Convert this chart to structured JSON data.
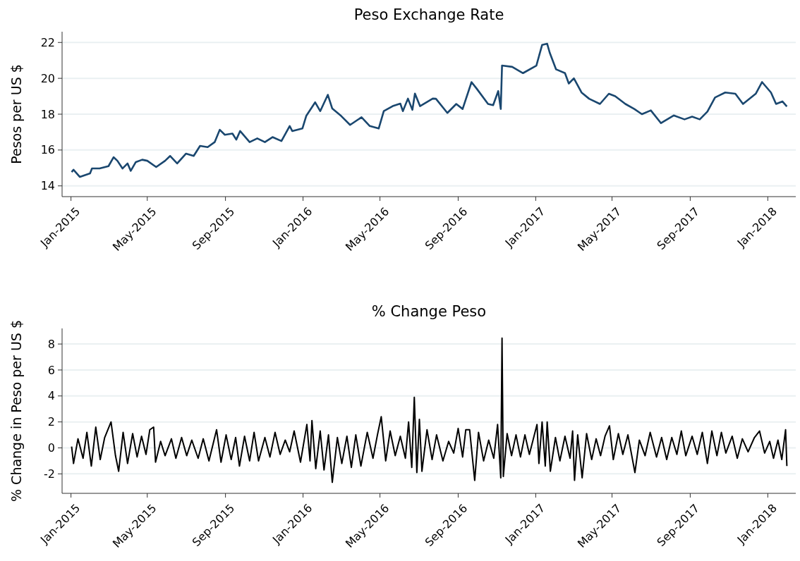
{
  "chart_data": [
    {
      "type": "line",
      "title": "Peso Exchange Rate",
      "ylabel": "Pesos per US $",
      "color": "#1a476f",
      "grid": "y",
      "xlim": [
        "2014-12-18",
        "2018-02-14"
      ],
      "ylim": [
        13.4,
        22.6
      ],
      "yticks": [
        14,
        16,
        18,
        20,
        22
      ],
      "xticks": [
        {
          "value": "2015-01-01",
          "label": "Jan-2015"
        },
        {
          "value": "2015-05-01",
          "label": "May-2015"
        },
        {
          "value": "2015-09-01",
          "label": "Sep-2015"
        },
        {
          "value": "2016-01-01",
          "label": "Jan-2016"
        },
        {
          "value": "2016-05-01",
          "label": "May-2016"
        },
        {
          "value": "2016-09-01",
          "label": "Sep-2016"
        },
        {
          "value": "2017-01-01",
          "label": "Jan-2017"
        },
        {
          "value": "2017-05-01",
          "label": "May-2017"
        },
        {
          "value": "2017-09-01",
          "label": "Sep-2017"
        },
        {
          "value": "2018-01-01",
          "label": "Jan-2018"
        }
      ],
      "x": [
        "2015-01-02",
        "2015-01-05",
        "2015-01-15",
        "2015-01-31",
        "2015-02-03",
        "2015-02-15",
        "2015-03-01",
        "2015-03-09",
        "2015-03-15",
        "2015-03-23",
        "2015-03-31",
        "2015-04-05",
        "2015-04-13",
        "2015-04-23",
        "2015-05-01",
        "2015-05-15",
        "2015-05-29",
        "2015-06-06",
        "2015-06-17",
        "2015-07-01",
        "2015-07-13",
        "2015-07-23",
        "2015-08-04",
        "2015-08-15",
        "2015-08-23",
        "2015-08-31",
        "2015-09-12",
        "2015-09-18",
        "2015-09-24",
        "2015-10-09",
        "2015-10-21",
        "2015-11-02",
        "2015-11-14",
        "2015-11-28",
        "2015-12-11",
        "2015-12-15",
        "2015-12-31",
        "2016-01-06",
        "2016-01-20",
        "2016-01-28",
        "2016-02-09",
        "2016-02-16",
        "2016-03-01",
        "2016-03-15",
        "2016-04-02",
        "2016-04-15",
        "2016-04-29",
        "2016-05-07",
        "2016-05-21",
        "2016-06-02",
        "2016-06-06",
        "2016-06-14",
        "2016-06-21",
        "2016-06-25",
        "2016-07-03",
        "2016-07-23",
        "2016-07-28",
        "2016-08-15",
        "2016-08-29",
        "2016-09-08",
        "2016-09-22",
        "2016-09-30",
        "2016-10-18",
        "2016-10-26",
        "2016-11-03",
        "2016-11-07",
        "2016-11-09",
        "2016-11-25",
        "2016-12-12",
        "2017-01-02",
        "2017-01-11",
        "2017-01-19",
        "2017-01-23",
        "2017-02-02",
        "2017-02-16",
        "2017-02-22",
        "2017-03-02",
        "2017-03-14",
        "2017-03-26",
        "2017-04-12",
        "2017-04-26",
        "2017-05-06",
        "2017-05-22",
        "2017-06-05",
        "2017-06-17",
        "2017-07-01",
        "2017-07-17",
        "2017-08-06",
        "2017-08-23",
        "2017-09-04",
        "2017-09-16",
        "2017-09-28",
        "2017-10-10",
        "2017-10-26",
        "2017-11-11",
        "2017-11-23",
        "2017-12-13",
        "2017-12-23",
        "2018-01-06",
        "2018-01-14",
        "2018-01-24",
        "2018-01-31"
      ],
      "values": [
        14.77,
        14.9,
        14.5,
        14.7,
        14.97,
        14.97,
        15.1,
        15.6,
        15.4,
        14.97,
        15.25,
        14.84,
        15.33,
        15.46,
        15.4,
        15.05,
        15.4,
        15.67,
        15.25,
        15.8,
        15.67,
        16.23,
        16.16,
        16.44,
        17.13,
        16.85,
        16.92,
        16.58,
        17.06,
        16.44,
        16.65,
        16.44,
        16.72,
        16.5,
        17.34,
        17.06,
        17.2,
        17.9,
        18.66,
        18.17,
        19.08,
        18.31,
        17.9,
        17.4,
        17.83,
        17.34,
        17.2,
        18.17,
        18.45,
        18.59,
        18.17,
        18.87,
        18.24,
        19.15,
        18.45,
        18.87,
        18.86,
        18.07,
        18.57,
        18.29,
        19.79,
        19.43,
        18.57,
        18.5,
        19.29,
        18.29,
        20.71,
        20.64,
        20.29,
        20.71,
        21.86,
        21.93,
        21.43,
        20.5,
        20.29,
        19.71,
        20,
        19.21,
        18.86,
        18.57,
        19.14,
        19,
        18.57,
        18.29,
        18,
        18.21,
        17.5,
        17.93,
        17.71,
        17.86,
        17.71,
        18.14,
        18.93,
        19.21,
        19.14,
        18.57,
        19.14,
        19.79,
        19.21,
        18.57,
        18.71,
        18.43
      ]
    },
    {
      "type": "line",
      "title": "% Change Peso",
      "ylabel": "% Change in Peso per US $",
      "color": "#000000",
      "grid": "y",
      "xlim": [
        "2014-12-18",
        "2018-02-14"
      ],
      "ylim": [
        -3.5,
        9.2
      ],
      "yticks": [
        -2,
        0,
        2,
        4,
        6,
        8
      ],
      "xticks": [
        {
          "value": "2015-01-01",
          "label": "Jan-2015"
        },
        {
          "value": "2015-05-01",
          "label": "May-2015"
        },
        {
          "value": "2015-09-01",
          "label": "Sep-2015"
        },
        {
          "value": "2016-01-01",
          "label": "Jan-2016"
        },
        {
          "value": "2016-05-01",
          "label": "May-2016"
        },
        {
          "value": "2016-09-01",
          "label": "Sep-2016"
        },
        {
          "value": "2017-01-01",
          "label": "Jan-2017"
        },
        {
          "value": "2017-05-01",
          "label": "May-2017"
        },
        {
          "value": "2017-09-01",
          "label": "Sep-2017"
        },
        {
          "value": "2018-01-01",
          "label": "Jan-2018"
        }
      ],
      "x": [
        "2015-01-02",
        "2015-01-05",
        "2015-01-12",
        "2015-01-20",
        "2015-01-26",
        "2015-02-02",
        "2015-02-09",
        "2015-02-16",
        "2015-02-23",
        "2015-03-05",
        "2015-03-12",
        "2015-03-17",
        "2015-03-24",
        "2015-03-31",
        "2015-04-08",
        "2015-04-15",
        "2015-04-22",
        "2015-04-29",
        "2015-05-05",
        "2015-05-11",
        "2015-05-14",
        "2015-05-22",
        "2015-05-29",
        "2015-06-08",
        "2015-06-15",
        "2015-06-24",
        "2015-07-02",
        "2015-07-10",
        "2015-07-20",
        "2015-07-28",
        "2015-08-06",
        "2015-08-18",
        "2015-08-25",
        "2015-09-02",
        "2015-09-10",
        "2015-09-17",
        "2015-09-23",
        "2015-10-01",
        "2015-10-09",
        "2015-10-16",
        "2015-10-23",
        "2015-11-02",
        "2015-11-10",
        "2015-11-18",
        "2015-11-26",
        "2015-12-04",
        "2015-12-11",
        "2015-12-18",
        "2015-12-28",
        "2016-01-07",
        "2016-01-12",
        "2016-01-15",
        "2016-01-21",
        "2016-01-28",
        "2016-02-03",
        "2016-02-10",
        "2016-02-16",
        "2016-02-24",
        "2016-03-02",
        "2016-03-10",
        "2016-03-17",
        "2016-03-24",
        "2016-04-01",
        "2016-04-11",
        "2016-04-20",
        "2016-04-27",
        "2016-05-03",
        "2016-05-10",
        "2016-05-17",
        "2016-05-25",
        "2016-06-02",
        "2016-06-10",
        "2016-06-15",
        "2016-06-20",
        "2016-06-24",
        "2016-06-28",
        "2016-07-02",
        "2016-07-06",
        "2016-07-14",
        "2016-07-22",
        "2016-07-29",
        "2016-08-08",
        "2016-08-17",
        "2016-08-25",
        "2016-09-01",
        "2016-09-08",
        "2016-09-13",
        "2016-09-19",
        "2016-09-27",
        "2016-10-03",
        "2016-10-11",
        "2016-10-19",
        "2016-10-27",
        "2016-11-02",
        "2016-11-07",
        "2016-11-09",
        "2016-11-11",
        "2016-11-17",
        "2016-11-24",
        "2016-12-01",
        "2016-12-08",
        "2016-12-15",
        "2016-12-22",
        "2017-01-03",
        "2017-01-06",
        "2017-01-11",
        "2017-01-16",
        "2017-01-19",
        "2017-01-24",
        "2017-02-01",
        "2017-02-08",
        "2017-02-16",
        "2017-02-24",
        "2017-02-28",
        "2017-03-03",
        "2017-03-08",
        "2017-03-15",
        "2017-03-22",
        "2017-03-30",
        "2017-04-06",
        "2017-04-13",
        "2017-04-20",
        "2017-04-27",
        "2017-05-03",
        "2017-05-11",
        "2017-05-18",
        "2017-05-26",
        "2017-06-06",
        "2017-06-13",
        "2017-06-22",
        "2017-06-30",
        "2017-07-10",
        "2017-07-18",
        "2017-07-26",
        "2017-08-03",
        "2017-08-11",
        "2017-08-18",
        "2017-08-25",
        "2017-09-04",
        "2017-09-12",
        "2017-09-20",
        "2017-09-28",
        "2017-10-05",
        "2017-10-13",
        "2017-10-20",
        "2017-10-27",
        "2017-11-06",
        "2017-11-14",
        "2017-11-22",
        "2017-12-01",
        "2017-12-11",
        "2017-12-19",
        "2017-12-27",
        "2018-01-04",
        "2018-01-10",
        "2018-01-17",
        "2018-01-23",
        "2018-01-29",
        "2018-01-31"
      ],
      "values": [
        0.1,
        -1.2,
        0.7,
        -0.8,
        1.2,
        -1.4,
        1.6,
        -0.9,
        0.8,
        2.0,
        -0.6,
        -1.8,
        1.2,
        -1.2,
        1.1,
        -0.7,
        0.9,
        -0.5,
        1.4,
        1.6,
        -1.1,
        0.5,
        -0.6,
        0.7,
        -0.8,
        0.8,
        -0.6,
        0.6,
        -0.8,
        0.7,
        -1.0,
        1.4,
        -1.1,
        1.0,
        -0.9,
        0.8,
        -1.4,
        0.9,
        -1.0,
        1.2,
        -1.0,
        0.8,
        -0.7,
        1.2,
        -0.5,
        0.6,
        -0.3,
        1.3,
        -1.1,
        1.8,
        -1.0,
        2.1,
        -1.6,
        1.3,
        -1.7,
        1.0,
        -2.65,
        0.8,
        -1.2,
        0.9,
        -1.5,
        1.0,
        -1.4,
        1.2,
        -0.8,
        1.0,
        2.4,
        -1.0,
        1.3,
        -0.6,
        0.9,
        -0.8,
        2.0,
        -1.5,
        3.9,
        -1.9,
        2.2,
        -1.8,
        1.4,
        -0.9,
        1.0,
        -1.0,
        0.5,
        -0.4,
        1.5,
        -0.7,
        1.4,
        1.4,
        -2.5,
        1.2,
        -1.0,
        0.6,
        -0.8,
        1.8,
        -2.3,
        8.45,
        -2.2,
        1.1,
        -0.6,
        1.0,
        -0.7,
        1.0,
        -0.5,
        1.8,
        -1.2,
        2.0,
        -1.4,
        2.0,
        -1.8,
        0.8,
        -1.0,
        0.9,
        -0.8,
        1.3,
        -2.5,
        1.0,
        -2.3,
        1.1,
        -0.9,
        0.7,
        -0.6,
        0.9,
        1.7,
        -0.9,
        1.1,
        -0.5,
        1.0,
        -1.9,
        0.6,
        -0.6,
        1.2,
        -0.7,
        0.8,
        -0.9,
        0.8,
        -0.5,
        1.3,
        -0.6,
        0.9,
        -0.5,
        1.2,
        -1.2,
        1.3,
        -0.6,
        1.2,
        -0.4,
        0.9,
        -0.8,
        0.7,
        -0.3,
        0.8,
        1.3,
        -0.4,
        0.5,
        -0.8,
        0.6,
        -0.9,
        1.4,
        -1.4
      ]
    }
  ]
}
